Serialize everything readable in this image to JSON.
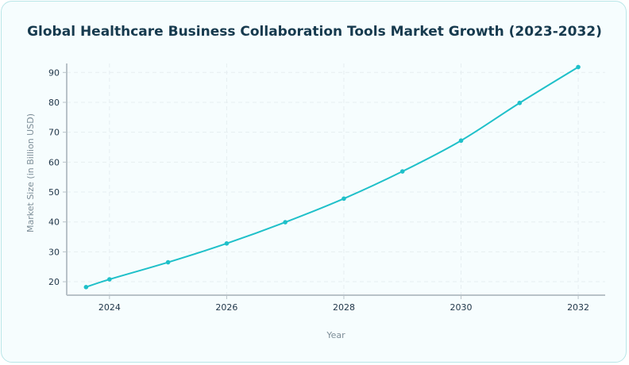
{
  "chart_data": {
    "type": "line",
    "title": "Global Healthcare Business Collaboration Tools Market Growth (2023-2032)",
    "xlabel": "Year",
    "ylabel": "Market Size (in Billion USD)",
    "x": [
      2023.6,
      2024,
      2025,
      2026,
      2027,
      2028,
      2029,
      2030,
      2031,
      2032
    ],
    "values": [
      18.2,
      20.8,
      26.5,
      32.8,
      39.9,
      47.8,
      56.9,
      67.2,
      79.8,
      91.8
    ],
    "xlim": [
      2023.27,
      2032.46
    ],
    "ylim": [
      15.5,
      93
    ],
    "xticks": [
      "2024",
      "2026",
      "2028",
      "2030",
      "2032"
    ],
    "yticks": [
      "20",
      "30",
      "40",
      "50",
      "60",
      "70",
      "80",
      "90"
    ],
    "grid": true,
    "line_color": "#1fc0c9",
    "axis_color": "#b8c2c8"
  }
}
